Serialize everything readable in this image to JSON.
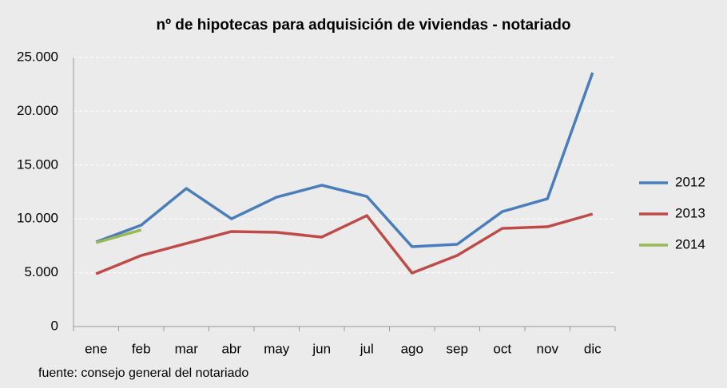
{
  "chart_data": {
    "type": "line",
    "title": "nº de hipotecas para adquisición  de viviendas - notariado",
    "source": "fuente: consejo general del notariado",
    "categories": [
      "ene",
      "feb",
      "mar",
      "abr",
      "may",
      "jun",
      "jul",
      "ago",
      "sep",
      "oct",
      "nov",
      "dic"
    ],
    "series": [
      {
        "name": "2012",
        "color": "#4a7ebb",
        "values": [
          7850,
          9420,
          12830,
          10010,
          12020,
          13130,
          12090,
          7420,
          7640,
          10680,
          11870,
          23590
        ]
      },
      {
        "name": "2013",
        "color": "#be4b48",
        "values": [
          4900,
          6600,
          7720,
          8830,
          8750,
          8310,
          10310,
          4970,
          6600,
          9120,
          9270,
          10460
        ]
      },
      {
        "name": "2014",
        "color": "#98b954",
        "values": [
          7790,
          8980,
          null,
          null,
          null,
          null,
          null,
          null,
          null,
          null,
          null,
          null
        ]
      }
    ],
    "ylim": [
      0,
      25000
    ],
    "yticks": [
      0,
      {
        "value": 5000,
        "label": "5.000"
      },
      {
        "value": 10000,
        "label": "10.000"
      },
      {
        "value": 15000,
        "label": "15.000"
      },
      {
        "value": 20000,
        "label": "20.000"
      },
      {
        "value": 25000,
        "label": "25.000"
      }
    ],
    "grid": true,
    "legend": "right"
  }
}
